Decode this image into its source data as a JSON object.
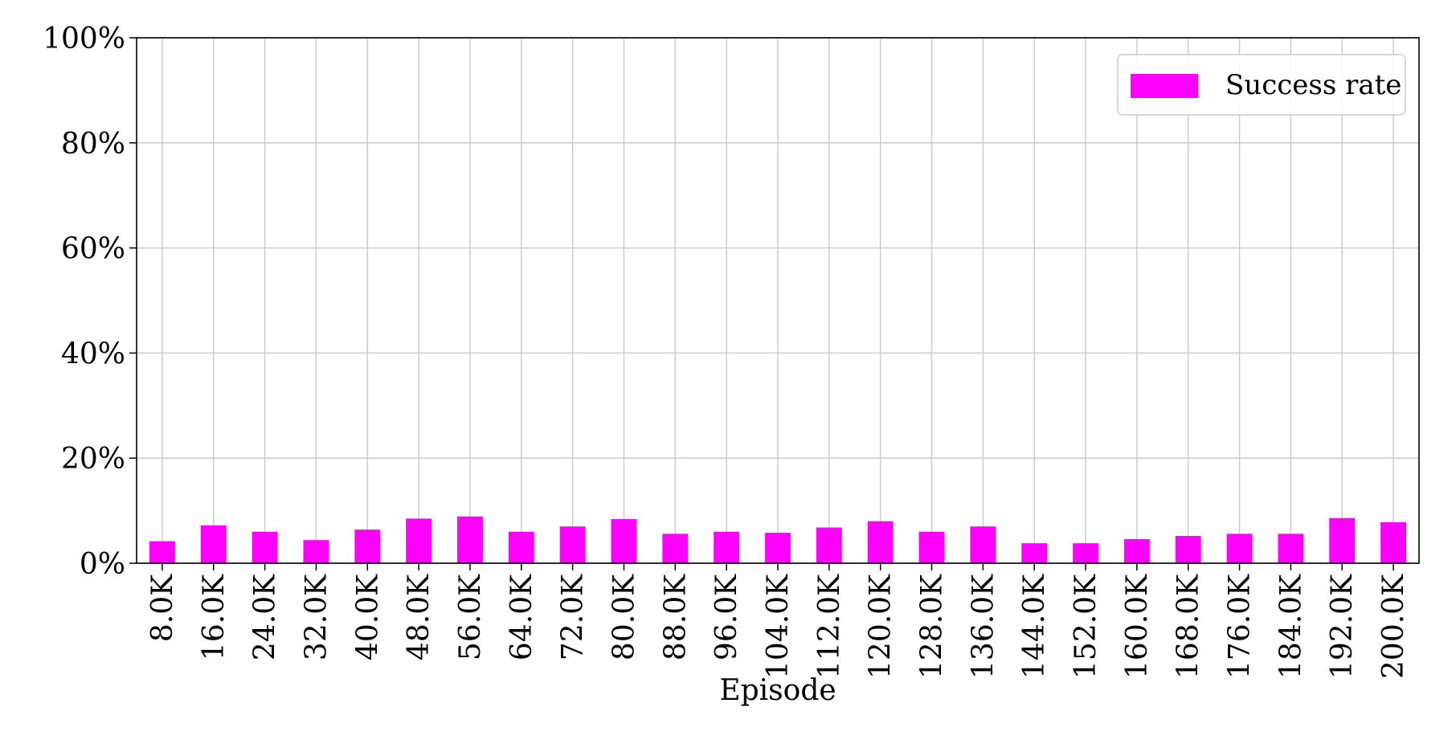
{
  "chart_data": {
    "type": "bar",
    "title": "",
    "xlabel": "Episode",
    "ylabel": "",
    "categories": [
      "8.0K",
      "16.0K",
      "24.0K",
      "32.0K",
      "40.0K",
      "48.0K",
      "56.0K",
      "64.0K",
      "72.0K",
      "80.0K",
      "88.0K",
      "96.0K",
      "104.0K",
      "112.0K",
      "120.0K",
      "128.0K",
      "136.0K",
      "144.0K",
      "152.0K",
      "160.0K",
      "168.0K",
      "176.0K",
      "184.0K",
      "192.0K",
      "200.0K"
    ],
    "series": [
      {
        "name": "Success rate",
        "color": "#ff00ff",
        "values": [
          4.2,
          7.2,
          6.0,
          4.4,
          6.4,
          8.5,
          8.9,
          6.0,
          7.0,
          8.4,
          5.6,
          6.0,
          5.8,
          6.8,
          8.0,
          6.0,
          7.0,
          3.8,
          3.8,
          4.6,
          5.2,
          5.6,
          5.6,
          8.6,
          7.8
        ]
      }
    ],
    "ylim": [
      0,
      100
    ],
    "yticks": [
      0,
      20,
      40,
      60,
      80,
      100
    ],
    "ytick_labels": [
      "0%",
      "20%",
      "40%",
      "60%",
      "80%",
      "100%"
    ],
    "grid": true,
    "legend_position": "top-right"
  }
}
